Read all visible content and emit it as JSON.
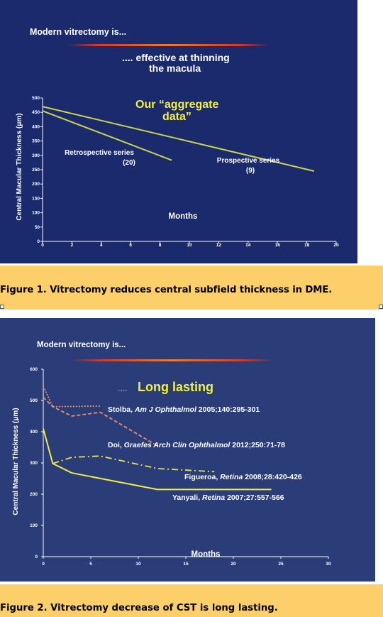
{
  "figures": [
    {
      "slide_title": "Modern vitrectomy is...",
      "headline_line1": ".... effective at thinning",
      "headline_line2": "the macula",
      "annotation_line1": "Our “aggregate",
      "annotation_line2": "data”",
      "caption": "Figure 1. Vitrectomy reduces central subfield thickness in DME."
    },
    {
      "slide_title": "Modern vitrectomy is...",
      "headline": "Long lasting",
      "caption": "Figure 2. Vitrectomy decrease of CST is long lasting."
    }
  ],
  "chart_data": [
    {
      "type": "line",
      "ylabel": "Central Macular Thickness (μm)",
      "xlabel": "Months",
      "xlim": [
        0,
        20
      ],
      "ylim": [
        0,
        500
      ],
      "xticks": [
        0,
        2,
        4,
        6,
        8,
        10,
        12,
        14,
        16,
        18,
        20
      ],
      "yticks": [
        0,
        50,
        100,
        150,
        200,
        250,
        300,
        350,
        400,
        450,
        500
      ],
      "grid": false,
      "series": [
        {
          "label_line1": "Retrospective series",
          "label_line2": "(20)",
          "color": "#c8d44a",
          "x": [
            0,
            8.8
          ],
          "y": [
            455,
            283
          ]
        },
        {
          "label_line1": "Prospective series",
          "label_line2": "(9)",
          "color": "#c8d44a",
          "x": [
            0,
            18.5
          ],
          "y": [
            470,
            245
          ]
        }
      ]
    },
    {
      "type": "line",
      "ylabel": "Central Macular Thickness (μm)",
      "xlabel": "Months",
      "xlim": [
        0,
        30
      ],
      "ylim": [
        0,
        600
      ],
      "xticks": [
        0,
        5,
        10,
        15,
        20,
        25,
        30
      ],
      "yticks": [
        0,
        100,
        200,
        300,
        400,
        500,
        600
      ],
      "grid": false,
      "series": [
        {
          "name": "Stolba",
          "journal": "Am J Ophthalmol",
          "citation": "2005;140:295-301",
          "color": "#e8906a",
          "style": "dotted",
          "x": [
            0,
            1,
            6
          ],
          "y": [
            545,
            480,
            482
          ]
        },
        {
          "name": "Doi",
          "journal": "Graefes Arch Clin Ophthalmol",
          "citation": "2012;250:71-78",
          "color": "#e8906a",
          "style": "dashed",
          "x": [
            0,
            1,
            3,
            6,
            12
          ],
          "y": [
            510,
            480,
            450,
            462,
            355
          ]
        },
        {
          "name": "Figueroa",
          "journal": "Retina",
          "citation": "2008;28:420-426",
          "color": "#e6e64a",
          "style": "dashdot",
          "x": [
            1,
            3,
            6,
            12,
            18
          ],
          "y": [
            298,
            318,
            322,
            282,
            272
          ]
        },
        {
          "name": "Yanyali",
          "journal": "Retina",
          "citation": "2007;27:557-566",
          "color": "#f0ec40",
          "style": "solid",
          "x": [
            0,
            1,
            3,
            12,
            24
          ],
          "y": [
            410,
            298,
            268,
            215,
            215
          ]
        }
      ]
    }
  ]
}
